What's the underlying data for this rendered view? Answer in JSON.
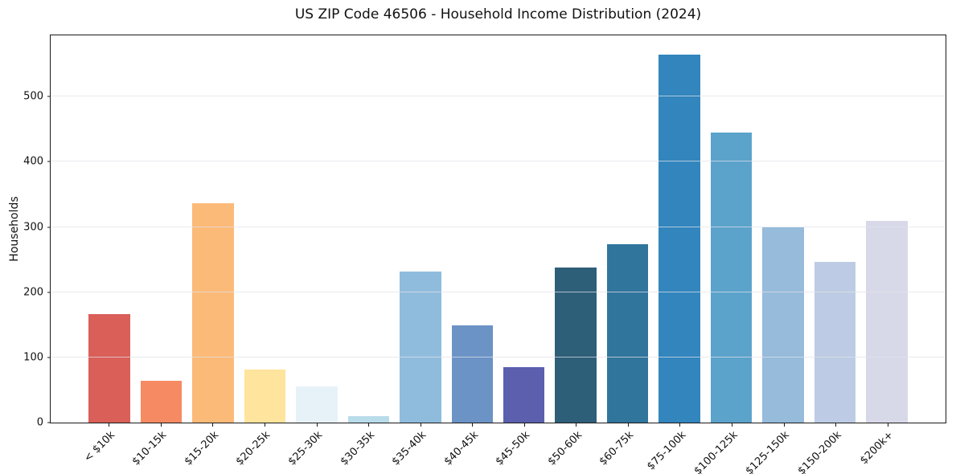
{
  "chart_data": {
    "type": "bar",
    "title": "US ZIP Code 46506 - Household Income Distribution (2024)",
    "xlabel": "",
    "ylabel": "Households",
    "categories": [
      "< $10k",
      "$10-15k",
      "$15-20k",
      "$20-25k",
      "$25-30k",
      "$30-35k",
      "$35-40k",
      "$40-45k",
      "$45-50k",
      "$50-60k",
      "$60-75k",
      "$75-100k",
      "$100-125k",
      "$125-150k",
      "$150-200k",
      "$200k+"
    ],
    "values": [
      166,
      64,
      337,
      81,
      56,
      10,
      232,
      149,
      85,
      238,
      273,
      564,
      445,
      300,
      246,
      309
    ],
    "bar_colors": [
      "#d95f58",
      "#f68a62",
      "#fcba78",
      "#fee49c",
      "#e7f2f8",
      "#b9dcea",
      "#8fbcdd",
      "#6b93c6",
      "#5b5fae",
      "#2e5f78",
      "#30759c",
      "#3285bd",
      "#5ba3cb",
      "#96bbdb",
      "#bdcce4",
      "#d8d9e8"
    ],
    "ylim": [
      0,
      594
    ],
    "yticks": [
      0,
      100,
      200,
      300,
      400,
      500
    ],
    "grid": "horizontal",
    "grid_color": "#e2e2e9",
    "background": "#ffffff",
    "axis_color": "#1a1a1a",
    "xtick_rotation": 45,
    "legend": "none"
  }
}
